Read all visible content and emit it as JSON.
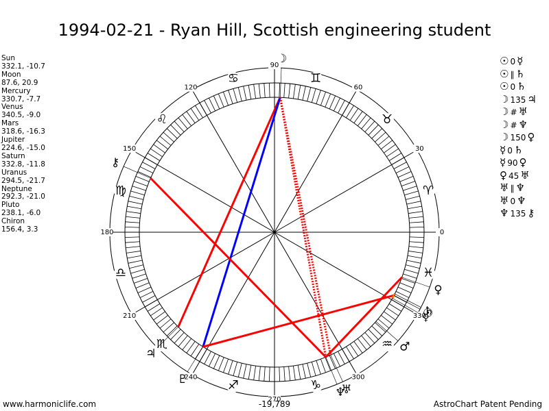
{
  "title": "1994-02-21 - Ryan Hill, Scottish engineering student",
  "planets": [
    {
      "name": "Sun",
      "position": "332.1, -10.7",
      "lon": 332.1,
      "glyph": "☉"
    },
    {
      "name": "Moon",
      "position": "87.6, 20.9",
      "lon": 87.6,
      "glyph": "☽"
    },
    {
      "name": "Mercury",
      "position": "330.7, -7.7",
      "lon": 330.7,
      "glyph": "☿"
    },
    {
      "name": "Venus",
      "position": "340.5, -9.0",
      "lon": 340.5,
      "glyph": "♀"
    },
    {
      "name": "Mars",
      "position": "318.6, -16.3",
      "lon": 318.6,
      "glyph": "♂"
    },
    {
      "name": "Jupiter",
      "position": "224.6, -15.0",
      "lon": 224.6,
      "glyph": "♃"
    },
    {
      "name": "Saturn",
      "position": "332.8, -11.8",
      "lon": 332.8,
      "glyph": "♄"
    },
    {
      "name": "Uranus",
      "position": "294.5, -21.7",
      "lon": 294.5,
      "glyph": "♅"
    },
    {
      "name": "Neptune",
      "position": "292.3, -21.0",
      "lon": 292.3,
      "glyph": "♆"
    },
    {
      "name": "Pluto",
      "position": "238.1, -6.0",
      "lon": 238.1,
      "glyph": "♇"
    },
    {
      "name": "Chiron",
      "position": "156.4, 3.3",
      "lon": 156.4,
      "glyph": "⚷"
    }
  ],
  "aspects": [
    {
      "p1": "☉",
      "type": "0",
      "p2": "☿"
    },
    {
      "p1": "☉",
      "type": "∥",
      "p2": "♄"
    },
    {
      "p1": "☉",
      "type": "0",
      "p2": "♄"
    },
    {
      "p1": "☽",
      "type": "135",
      "p2": "♃"
    },
    {
      "p1": "☽",
      "type": "#",
      "p2": "♅"
    },
    {
      "p1": "☽",
      "type": "#",
      "p2": "♆"
    },
    {
      "p1": "☽",
      "type": "150",
      "p2": "♀"
    },
    {
      "p1": "☿",
      "type": "0",
      "p2": "♄"
    },
    {
      "p1": "☿",
      "type": "90",
      "p2": "♀"
    },
    {
      "p1": "♀",
      "type": "45",
      "p2": "♅"
    },
    {
      "p1": "♅",
      "type": "∥",
      "p2": "♆"
    },
    {
      "p1": "♅",
      "type": "0",
      "p2": "♆"
    },
    {
      "p1": "♆",
      "type": "135",
      "p2": "⚷"
    }
  ],
  "wheel": {
    "degree_labels": [
      {
        "text": "0",
        "deg": 0
      },
      {
        "text": "30",
        "deg": 30
      },
      {
        "text": "60",
        "deg": 60
      },
      {
        "text": "90",
        "deg": 90
      },
      {
        "text": "120",
        "deg": 120
      },
      {
        "text": "150",
        "deg": 150
      },
      {
        "text": "180",
        "deg": 180
      },
      {
        "text": "210",
        "deg": 210
      },
      {
        "text": "240",
        "deg": 240
      },
      {
        "text": "270",
        "deg": 270
      },
      {
        "text": "300",
        "deg": 300
      },
      {
        "text": "330",
        "deg": 330
      }
    ],
    "zodiac_signs": [
      {
        "glyph": "♈",
        "name": "aries",
        "deg": 15
      },
      {
        "glyph": "♉",
        "name": "taurus",
        "deg": 45
      },
      {
        "glyph": "♊",
        "name": "gemini",
        "deg": 75
      },
      {
        "glyph": "♋",
        "name": "cancer",
        "deg": 105
      },
      {
        "glyph": "♌",
        "name": "leo",
        "deg": 135
      },
      {
        "glyph": "♍",
        "name": "virgo",
        "deg": 165
      },
      {
        "glyph": "♎",
        "name": "libra",
        "deg": 195
      },
      {
        "glyph": "♏",
        "name": "scorpio",
        "deg": 225
      },
      {
        "glyph": "♐",
        "name": "sagittarius",
        "deg": 255
      },
      {
        "glyph": "♑",
        "name": "capricorn",
        "deg": 285
      },
      {
        "glyph": "♒",
        "name": "aquarius",
        "deg": 315
      },
      {
        "glyph": "♓",
        "name": "pisces",
        "deg": 345
      }
    ],
    "aspect_lines": [
      {
        "from": 87.6,
        "to": 224.6,
        "color": "#ff0000",
        "style": "solid"
      },
      {
        "from": 87.6,
        "to": 238.1,
        "color": "#0000ff",
        "style": "solid"
      },
      {
        "from": 87.6,
        "to": 294.5,
        "color": "#ff0000",
        "style": "dotted"
      },
      {
        "from": 87.6,
        "to": 292.3,
        "color": "#ff0000",
        "style": "dotted"
      },
      {
        "from": 156.4,
        "to": 292.3,
        "color": "#ff0000",
        "style": "solid"
      },
      {
        "from": 292.3,
        "to": 340.5,
        "color": "#ff0000",
        "style": "solid"
      },
      {
        "from": 238.1,
        "to": 332.1,
        "color": "#ff0000",
        "style": "solid"
      },
      {
        "from": 330.7,
        "to": 332.8,
        "color": "#ff8000",
        "style": "solid"
      }
    ]
  },
  "footer": {
    "left": "www.harmoniclife.com",
    "center": "-19,789",
    "right": "AstroChart Patent Pending"
  }
}
